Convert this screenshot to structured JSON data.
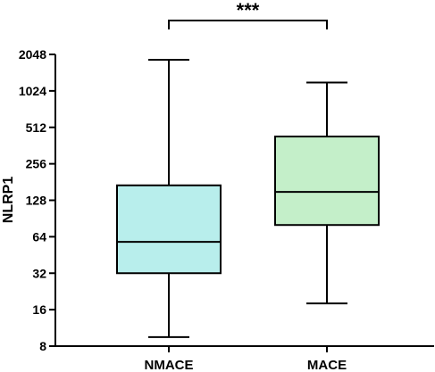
{
  "chart_data": {
    "type": "box",
    "ylabel": "NLRP1",
    "yscale": "log2",
    "ylim": [
      8,
      2048
    ],
    "yticks": [
      8,
      16,
      32,
      64,
      128,
      256,
      512,
      1024,
      2048
    ],
    "ytick_labels": [
      "8",
      "16",
      "32",
      "64",
      "128",
      "256",
      "512",
      "1024",
      "2048"
    ],
    "categories": [
      "NMACE",
      "MACE"
    ],
    "boxes": [
      {
        "category": "NMACE",
        "min": 9.5,
        "q1": 32,
        "median": 58,
        "q3": 170,
        "max": 1850,
        "color": "#b8eeec"
      },
      {
        "category": "MACE",
        "min": 18,
        "q1": 80,
        "median": 150,
        "q3": 430,
        "max": 1200,
        "color": "#c4efc9"
      }
    ],
    "significance": {
      "from": "NMACE",
      "to": "MACE",
      "label": "***"
    },
    "grid": false,
    "legend": "none"
  }
}
